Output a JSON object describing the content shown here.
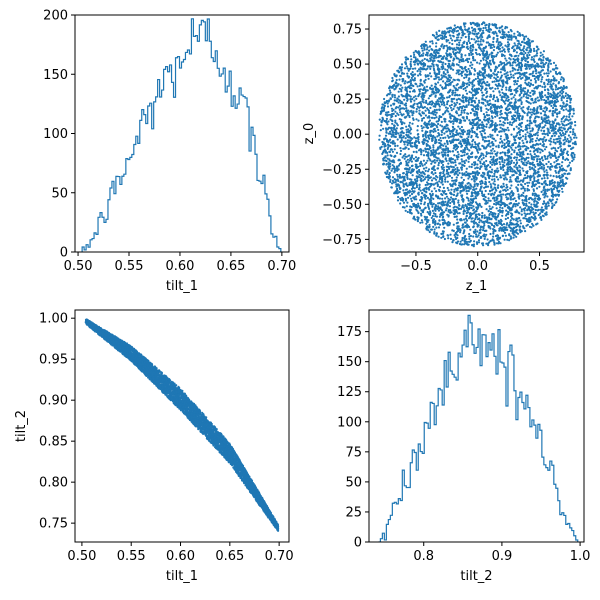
{
  "chart_data": [
    {
      "type": "histogram",
      "xlabel": "tilt_1",
      "ylabel": "",
      "xlim": [
        0.497,
        0.707
      ],
      "ylim": [
        0,
        200
      ],
      "xticks": [
        "0.50",
        "0.55",
        "0.60",
        "0.65",
        "0.70"
      ],
      "yticks": [
        "0",
        "50",
        "100",
        "150",
        "200"
      ],
      "color": "#1f77b4",
      "histtype": "step",
      "bin_range": [
        0.504,
        0.699
      ],
      "envelope": {
        "x": [
          0.504,
          0.515,
          0.53,
          0.55,
          0.57,
          0.59,
          0.61,
          0.625,
          0.64,
          0.66,
          0.675,
          0.688,
          0.699
        ],
        "y": [
          0,
          12,
          40,
          78,
          120,
          150,
          175,
          180,
          165,
          128,
          80,
          30,
          0
        ]
      }
    },
    {
      "type": "scatter",
      "xlabel": "z_1",
      "ylabel": "z_0",
      "xlim": [
        -0.88,
        0.86
      ],
      "ylim": [
        -0.84,
        0.85
      ],
      "xticks": [
        "−0.5",
        "0.0",
        "0.5"
      ],
      "yticks": [
        "−0.75",
        "−0.50",
        "−0.25",
        "0.00",
        "0.25",
        "0.50",
        "0.75"
      ],
      "color": "#1f77b4",
      "distribution": "uniform-disk",
      "center": [
        0.0,
        0.0
      ],
      "radius": 0.8
    },
    {
      "type": "scatter",
      "xlabel": "tilt_1",
      "ylabel": "tilt_2",
      "xlim": [
        0.493,
        0.71
      ],
      "ylim": [
        0.727,
        1.01
      ],
      "xticks": [
        "0.50",
        "0.55",
        "0.60",
        "0.65",
        "0.70"
      ],
      "yticks": [
        "0.75",
        "0.80",
        "0.85",
        "0.90",
        "0.95",
        "1.00"
      ],
      "color": "#1f77b4",
      "band": {
        "x": [
          0.504,
          0.55,
          0.6,
          0.65,
          0.699
        ],
        "y_center": [
          0.996,
          0.957,
          0.901,
          0.835,
          0.744
        ],
        "half_width": [
          0.003,
          0.009,
          0.013,
          0.012,
          0.004
        ]
      }
    },
    {
      "type": "histogram",
      "xlabel": "tilt_2",
      "ylabel": "",
      "xlim": [
        0.73,
        1.005
      ],
      "ylim": [
        0,
        193
      ],
      "xticks": [
        "0.8",
        "0.9",
        "1.0"
      ],
      "yticks": [
        "0",
        "25",
        "50",
        "75",
        "100",
        "125",
        "150",
        "175"
      ],
      "color": "#1f77b4",
      "histtype": "step",
      "bin_range": [
        0.742,
        0.997
      ],
      "envelope": {
        "x": [
          0.742,
          0.76,
          0.78,
          0.8,
          0.82,
          0.84,
          0.86,
          0.88,
          0.9,
          0.92,
          0.94,
          0.96,
          0.98,
          0.997
        ],
        "y": [
          0,
          25,
          55,
          90,
          125,
          150,
          168,
          170,
          155,
          128,
          95,
          60,
          25,
          0
        ]
      }
    }
  ]
}
